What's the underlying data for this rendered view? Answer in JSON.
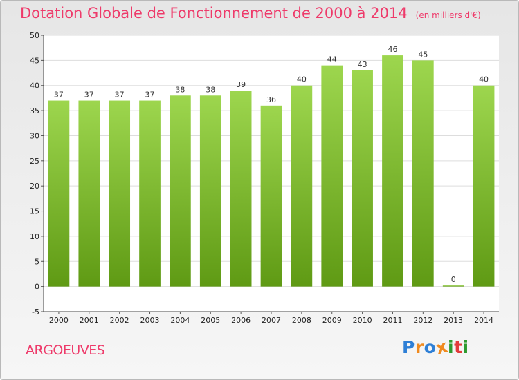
{
  "chart_data": {
    "type": "bar",
    "title": "Dotation Globale de Fonctionnement de 2000 à 2014",
    "unit_note": "(en milliers d'€)",
    "categories": [
      "2000",
      "2001",
      "2002",
      "2003",
      "2004",
      "2005",
      "2006",
      "2007",
      "2008",
      "2009",
      "2010",
      "2011",
      "2012",
      "2013",
      "2014"
    ],
    "values": [
      37,
      37,
      37,
      37,
      38,
      38,
      39,
      36,
      40,
      44,
      43,
      46,
      45,
      0,
      40
    ],
    "ylim": [
      -5,
      50
    ],
    "yticks": [
      -5,
      0,
      5,
      10,
      15,
      20,
      25,
      30,
      35,
      40,
      45,
      50
    ],
    "grid": true,
    "legend": "none",
    "colors": {
      "bar_light": "#9dd64e",
      "bar_dark": "#5f9a14",
      "title": "#ee3a6a",
      "grid": "#dddddd"
    }
  },
  "commune": "ARGOEUVES",
  "logo": {
    "letters": [
      "P",
      "r",
      "o",
      "x",
      "i",
      "t",
      "i"
    ],
    "colors": [
      "#2e7fd6",
      "#f08a1e",
      "#2e7fd6",
      "#f08a1e",
      "#2e9a2e",
      "#e23b3b",
      "#2e9a2e"
    ]
  }
}
